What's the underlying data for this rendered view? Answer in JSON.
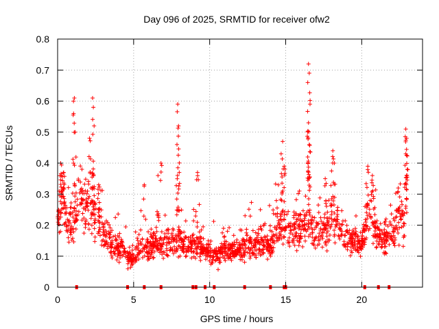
{
  "chart_data": {
    "type": "scatter",
    "title": "Day 096 of 2025, SRMTID for receiver ofw2",
    "xlabel": "GPS time / hours",
    "ylabel": "SRMTID / TECUs",
    "xlim": [
      0,
      24
    ],
    "ylim": [
      0,
      0.8
    ],
    "x_ticks": [
      0,
      5,
      10,
      15,
      20
    ],
    "x_tick_labels": [
      "0",
      "5",
      "10",
      "15",
      "20"
    ],
    "y_ticks": [
      0,
      0.1,
      0.2,
      0.3,
      0.4,
      0.5,
      0.6,
      0.7,
      0.8
    ],
    "y_tick_labels": [
      "0",
      "0.1",
      "0.2",
      "0.3",
      "0.4",
      "0.5",
      "0.6",
      "0.7",
      "0.8"
    ],
    "grid": true,
    "marker": "plus",
    "series": [
      {
        "name": "SRMTID",
        "color": "#ff0000",
        "envelope": [
          [
            0.0,
            0.22
          ],
          [
            0.3,
            0.3
          ],
          [
            0.6,
            0.22
          ],
          [
            1.0,
            0.2
          ],
          [
            1.2,
            0.24
          ],
          [
            1.5,
            0.3
          ],
          [
            1.8,
            0.25
          ],
          [
            2.1,
            0.26
          ],
          [
            2.4,
            0.22
          ],
          [
            2.8,
            0.21
          ],
          [
            3.2,
            0.16
          ],
          [
            3.6,
            0.14
          ],
          [
            4.0,
            0.13
          ],
          [
            4.5,
            0.11
          ],
          [
            5.0,
            0.1
          ],
          [
            5.5,
            0.14
          ],
          [
            6.0,
            0.12
          ],
          [
            6.5,
            0.15
          ],
          [
            7.0,
            0.13
          ],
          [
            7.5,
            0.14
          ],
          [
            8.0,
            0.16
          ],
          [
            8.5,
            0.12
          ],
          [
            9.0,
            0.14
          ],
          [
            9.5,
            0.13
          ],
          [
            10.0,
            0.11
          ],
          [
            10.5,
            0.1
          ],
          [
            11.0,
            0.12
          ],
          [
            11.5,
            0.11
          ],
          [
            12.0,
            0.12
          ],
          [
            12.5,
            0.14
          ],
          [
            13.0,
            0.14
          ],
          [
            13.5,
            0.15
          ],
          [
            14.0,
            0.13
          ],
          [
            14.5,
            0.18
          ],
          [
            15.0,
            0.2
          ],
          [
            15.5,
            0.18
          ],
          [
            16.0,
            0.17
          ],
          [
            16.5,
            0.22
          ],
          [
            17.0,
            0.16
          ],
          [
            17.5,
            0.18
          ],
          [
            18.0,
            0.24
          ],
          [
            18.5,
            0.2
          ],
          [
            19.0,
            0.15
          ],
          [
            19.5,
            0.15
          ],
          [
            20.0,
            0.13
          ],
          [
            20.5,
            0.28
          ],
          [
            21.0,
            0.16
          ],
          [
            21.5,
            0.15
          ],
          [
            22.0,
            0.16
          ],
          [
            22.5,
            0.24
          ],
          [
            22.9,
            0.2
          ]
        ],
        "spikes": [
          {
            "x": 0.2,
            "y": 0.4
          },
          {
            "x": 0.4,
            "y": 0.37
          },
          {
            "x": 1.1,
            "y": 0.61
          },
          {
            "x": 1.05,
            "y": 0.56
          },
          {
            "x": 1.15,
            "y": 0.5
          },
          {
            "x": 1.6,
            "y": 0.38
          },
          {
            "x": 2.1,
            "y": 0.48
          },
          {
            "x": 2.3,
            "y": 0.61
          },
          {
            "x": 2.35,
            "y": 0.58
          },
          {
            "x": 2.4,
            "y": 0.52
          },
          {
            "x": 2.7,
            "y": 0.33
          },
          {
            "x": 5.7,
            "y": 0.33
          },
          {
            "x": 6.6,
            "y": 0.36
          },
          {
            "x": 6.8,
            "y": 0.4
          },
          {
            "x": 7.9,
            "y": 0.59
          },
          {
            "x": 7.95,
            "y": 0.52
          },
          {
            "x": 7.85,
            "y": 0.46
          },
          {
            "x": 8.0,
            "y": 0.37
          },
          {
            "x": 9.2,
            "y": 0.37
          },
          {
            "x": 14.8,
            "y": 0.47
          },
          {
            "x": 14.7,
            "y": 0.43
          },
          {
            "x": 14.9,
            "y": 0.39
          },
          {
            "x": 15.9,
            "y": 0.31
          },
          {
            "x": 16.5,
            "y": 0.72
          },
          {
            "x": 16.55,
            "y": 0.69
          },
          {
            "x": 16.45,
            "y": 0.66
          },
          {
            "x": 16.6,
            "y": 0.59
          },
          {
            "x": 16.5,
            "y": 0.53
          },
          {
            "x": 16.55,
            "y": 0.46
          },
          {
            "x": 16.45,
            "y": 0.42
          },
          {
            "x": 17.6,
            "y": 0.35
          },
          {
            "x": 18.1,
            "y": 0.44
          },
          {
            "x": 18.2,
            "y": 0.4
          },
          {
            "x": 20.4,
            "y": 0.39
          },
          {
            "x": 20.7,
            "y": 0.36
          },
          {
            "x": 21.6,
            "y": 0.22
          },
          {
            "x": 22.4,
            "y": 0.32
          },
          {
            "x": 22.9,
            "y": 0.51
          },
          {
            "x": 22.95,
            "y": 0.48
          },
          {
            "x": 22.9,
            "y": 0.43
          },
          {
            "x": 23.0,
            "y": 0.38
          },
          {
            "x": 22.95,
            "y": 0.36
          }
        ],
        "n_points": 1700
      },
      {
        "name": "zero markers",
        "color": "#ff0000",
        "x": [
          1.25,
          4.6,
          5.7,
          6.8,
          8.9,
          9.1,
          9.7,
          10.3,
          12.3,
          14.0,
          14.9,
          15.0,
          20.2,
          21.1,
          21.8
        ],
        "y": [
          0,
          0,
          0,
          0,
          0,
          0,
          0,
          0,
          0,
          0,
          0,
          0,
          0,
          0,
          0
        ]
      }
    ]
  }
}
